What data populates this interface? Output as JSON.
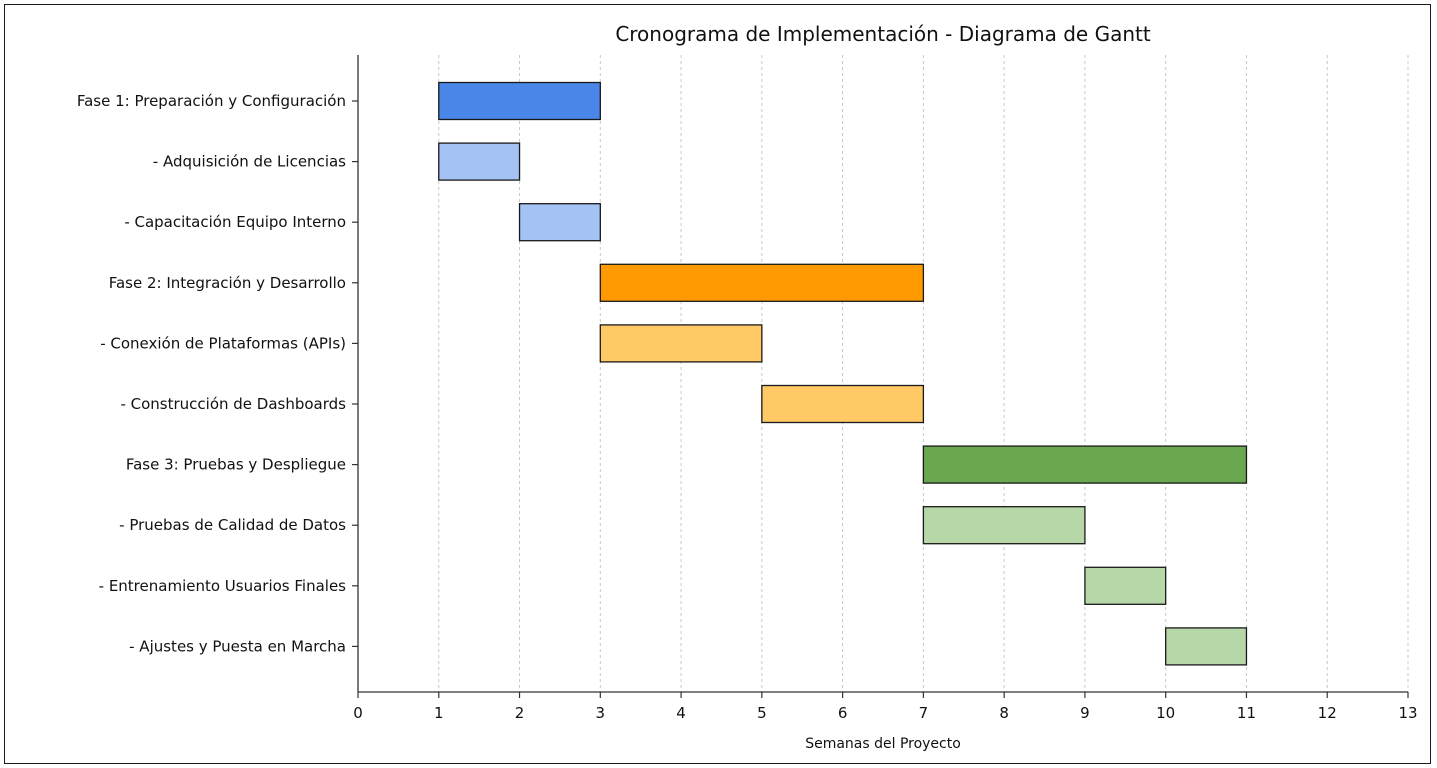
{
  "chart_data": {
    "type": "gantt",
    "title": "Cronograma de Implementación - Diagrama de Gantt",
    "xlabel": "Semanas del Proyecto",
    "ylabel": "",
    "xlim": [
      0,
      13
    ],
    "x_ticks": [
      "0",
      "1",
      "2",
      "3",
      "4",
      "5",
      "6",
      "7",
      "8",
      "9",
      "10",
      "11",
      "12",
      "13"
    ],
    "grid": "vertical dashed",
    "tasks": [
      {
        "label": "Fase 1: Preparación y Configuración",
        "start": 1,
        "end": 3,
        "color": "#4a86e8",
        "phase": true
      },
      {
        "label": "- Adquisición de Licencias",
        "start": 1,
        "end": 2,
        "color": "#a4c2f4",
        "phase": false
      },
      {
        "label": "- Capacitación Equipo Interno",
        "start": 2,
        "end": 3,
        "color": "#a4c2f4",
        "phase": false
      },
      {
        "label": "Fase 2: Integración y Desarrollo",
        "start": 3,
        "end": 7,
        "color": "#ff9900",
        "phase": true
      },
      {
        "label": "- Conexión de Plataformas (APIs)",
        "start": 3,
        "end": 5,
        "color": "#ffc966",
        "phase": false
      },
      {
        "label": "- Construcción de Dashboards",
        "start": 5,
        "end": 7,
        "color": "#ffc966",
        "phase": false
      },
      {
        "label": "Fase 3: Pruebas y Despliegue",
        "start": 7,
        "end": 11,
        "color": "#6aa84f",
        "phase": true
      },
      {
        "label": "- Pruebas de Calidad de Datos",
        "start": 7,
        "end": 9,
        "color": "#b6d7a8",
        "phase": false
      },
      {
        "label": "- Entrenamiento Usuarios Finales",
        "start": 9,
        "end": 10,
        "color": "#b6d7a8",
        "phase": false
      },
      {
        "label": "- Ajustes y Puesta en Marcha",
        "start": 10,
        "end": 11,
        "color": "#b6d7a8",
        "phase": false
      }
    ]
  }
}
